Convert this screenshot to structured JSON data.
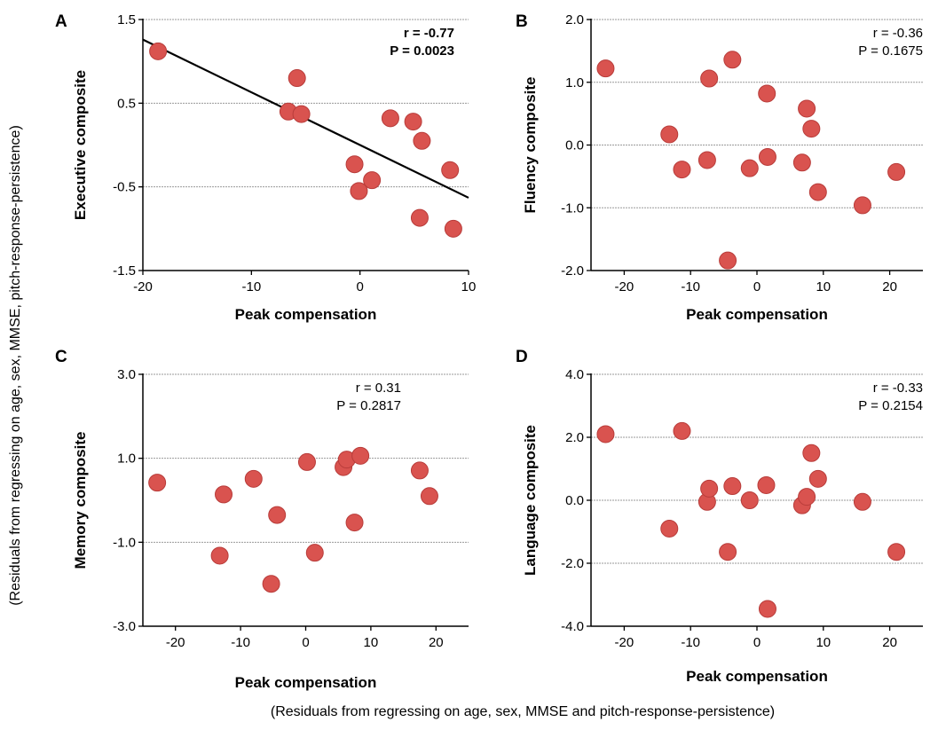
{
  "figure": {
    "global_ylabel": "(Residuals from regressing on age, sex, MMSE, pitch-response-persistence)",
    "global_xlabel": "(Residuals from regressing on age, sex, MMSE and pitch-response-persistence)"
  },
  "colors": {
    "point_fill": "#d9534f",
    "point_stroke": "#b83c3a",
    "grid": "#9a9a9a",
    "axis": "#000000",
    "fit_line": "#000000"
  },
  "chart_data": [
    {
      "panel": "A",
      "type": "scatter",
      "xlabel": "Peak compensation",
      "ylabel": "Executive composite",
      "xlim": [
        -20,
        10
      ],
      "ylim": [
        -1.5,
        1.5
      ],
      "xticks": [
        -20,
        -10,
        0,
        10
      ],
      "xtick_labels": [
        "-20",
        "-10",
        "0",
        "10"
      ],
      "yticks": [
        -1.5,
        -0.5,
        0.5,
        1.5
      ],
      "ytick_labels": [
        "-1.5",
        "-0.5",
        "0.5",
        "1.5"
      ],
      "grid_y": [
        -0.5,
        0.5,
        1.5
      ],
      "r_text": "r = -0.77",
      "p_text": "P = 0.0023",
      "stats_bold": true,
      "fit_line": {
        "x": [
          -20,
          10
        ],
        "y": [
          1.26,
          -0.63
        ]
      },
      "x": [
        -18.6,
        -5.8,
        -6.6,
        -5.4,
        -0.5,
        -0.1,
        1.1,
        2.8,
        4.9,
        5.7,
        5.5,
        8.6,
        8.3
      ],
      "y": [
        1.12,
        0.8,
        0.4,
        0.37,
        -0.23,
        -0.55,
        -0.42,
        0.32,
        0.28,
        0.05,
        -0.87,
        -1.0,
        -0.3
      ]
    },
    {
      "panel": "B",
      "type": "scatter",
      "xlabel": "Peak compensation",
      "ylabel": "Fluency composite",
      "xlim": [
        -25,
        25
      ],
      "ylim": [
        -2.0,
        2.0
      ],
      "xticks": [
        -20,
        -10,
        0,
        10,
        20
      ],
      "xtick_labels": [
        "-20",
        "-10",
        "0",
        "10",
        "20"
      ],
      "yticks": [
        -2,
        -1,
        0,
        1,
        2
      ],
      "ytick_labels": [
        "-2.0",
        "-1.0",
        "0.0",
        "1.0",
        "2.0"
      ],
      "grid_y": [
        -1,
        0,
        1,
        2
      ],
      "r_text": "r = -0.36",
      "p_text": "P = 0.1675",
      "stats_bold": false,
      "x": [
        -22.8,
        -13.2,
        -11.3,
        -7.2,
        -7.5,
        -3.7,
        -4.4,
        -1.1,
        1.5,
        1.6,
        6.8,
        7.5,
        8.2,
        9.2,
        15.9,
        21.0
      ],
      "y": [
        1.22,
        0.17,
        -0.39,
        1.06,
        -0.24,
        1.36,
        -1.84,
        -0.37,
        0.82,
        -0.19,
        -0.28,
        0.58,
        0.26,
        -0.75,
        -0.96,
        -0.43
      ]
    },
    {
      "panel": "C",
      "type": "scatter",
      "xlabel": "Peak compensation",
      "ylabel": "Memory composite",
      "xlim": [
        -25,
        25
      ],
      "ylim": [
        -3.0,
        3.0
      ],
      "xticks": [
        -20,
        -10,
        0,
        10,
        20
      ],
      "xtick_labels": [
        "-20",
        "-10",
        "0",
        "10",
        "20"
      ],
      "yticks": [
        -3,
        -1,
        1,
        3
      ],
      "ytick_labels": [
        "-3.0",
        "-1.0",
        "1.0",
        "3.0"
      ],
      "grid_y": [
        -1,
        1,
        3
      ],
      "r_text": "r = 0.31",
      "p_text": "P = 0.2817",
      "stats_bold": false,
      "x": [
        -22.8,
        -13.2,
        -12.6,
        -8.0,
        -4.4,
        -5.3,
        0.2,
        1.4,
        5.8,
        6.3,
        7.5,
        8.4,
        17.5,
        19.0
      ],
      "y": [
        0.42,
        -1.32,
        0.14,
        0.51,
        -0.35,
        -1.99,
        0.91,
        -1.25,
        0.79,
        0.97,
        -0.53,
        1.06,
        0.71,
        0.1
      ]
    },
    {
      "panel": "D",
      "type": "scatter",
      "xlabel": "Peak compensation",
      "ylabel": "Language composite",
      "xlim": [
        -25,
        25
      ],
      "ylim": [
        -4.0,
        4.0
      ],
      "xticks": [
        -20,
        -10,
        0,
        10,
        20
      ],
      "xtick_labels": [
        "-20",
        "-10",
        "0",
        "10",
        "20"
      ],
      "yticks": [
        -4,
        -2,
        0,
        2,
        4
      ],
      "ytick_labels": [
        "-4.0",
        "-2.0",
        "0.0",
        "2.0",
        "4.0"
      ],
      "grid_y": [
        -2,
        0,
        2,
        4
      ],
      "r_text": "r = -0.33",
      "p_text": "P = 0.2154",
      "stats_bold": false,
      "x": [
        -22.8,
        -11.3,
        -13.2,
        -7.5,
        -7.2,
        -3.7,
        -4.4,
        -1.1,
        1.4,
        1.6,
        6.8,
        7.5,
        8.2,
        9.2,
        15.9,
        21.0
      ],
      "y": [
        2.1,
        2.2,
        -0.9,
        -0.05,
        0.37,
        0.45,
        -1.64,
        0.0,
        0.48,
        -3.45,
        -0.16,
        0.11,
        1.5,
        0.68,
        -0.05,
        -1.64
      ]
    }
  ]
}
